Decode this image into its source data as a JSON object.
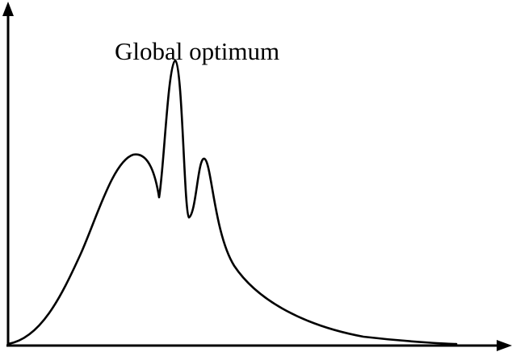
{
  "annotation": {
    "text": "Global optimum"
  },
  "colors": {
    "background": "#ffffff",
    "ink": "#000000"
  }
}
